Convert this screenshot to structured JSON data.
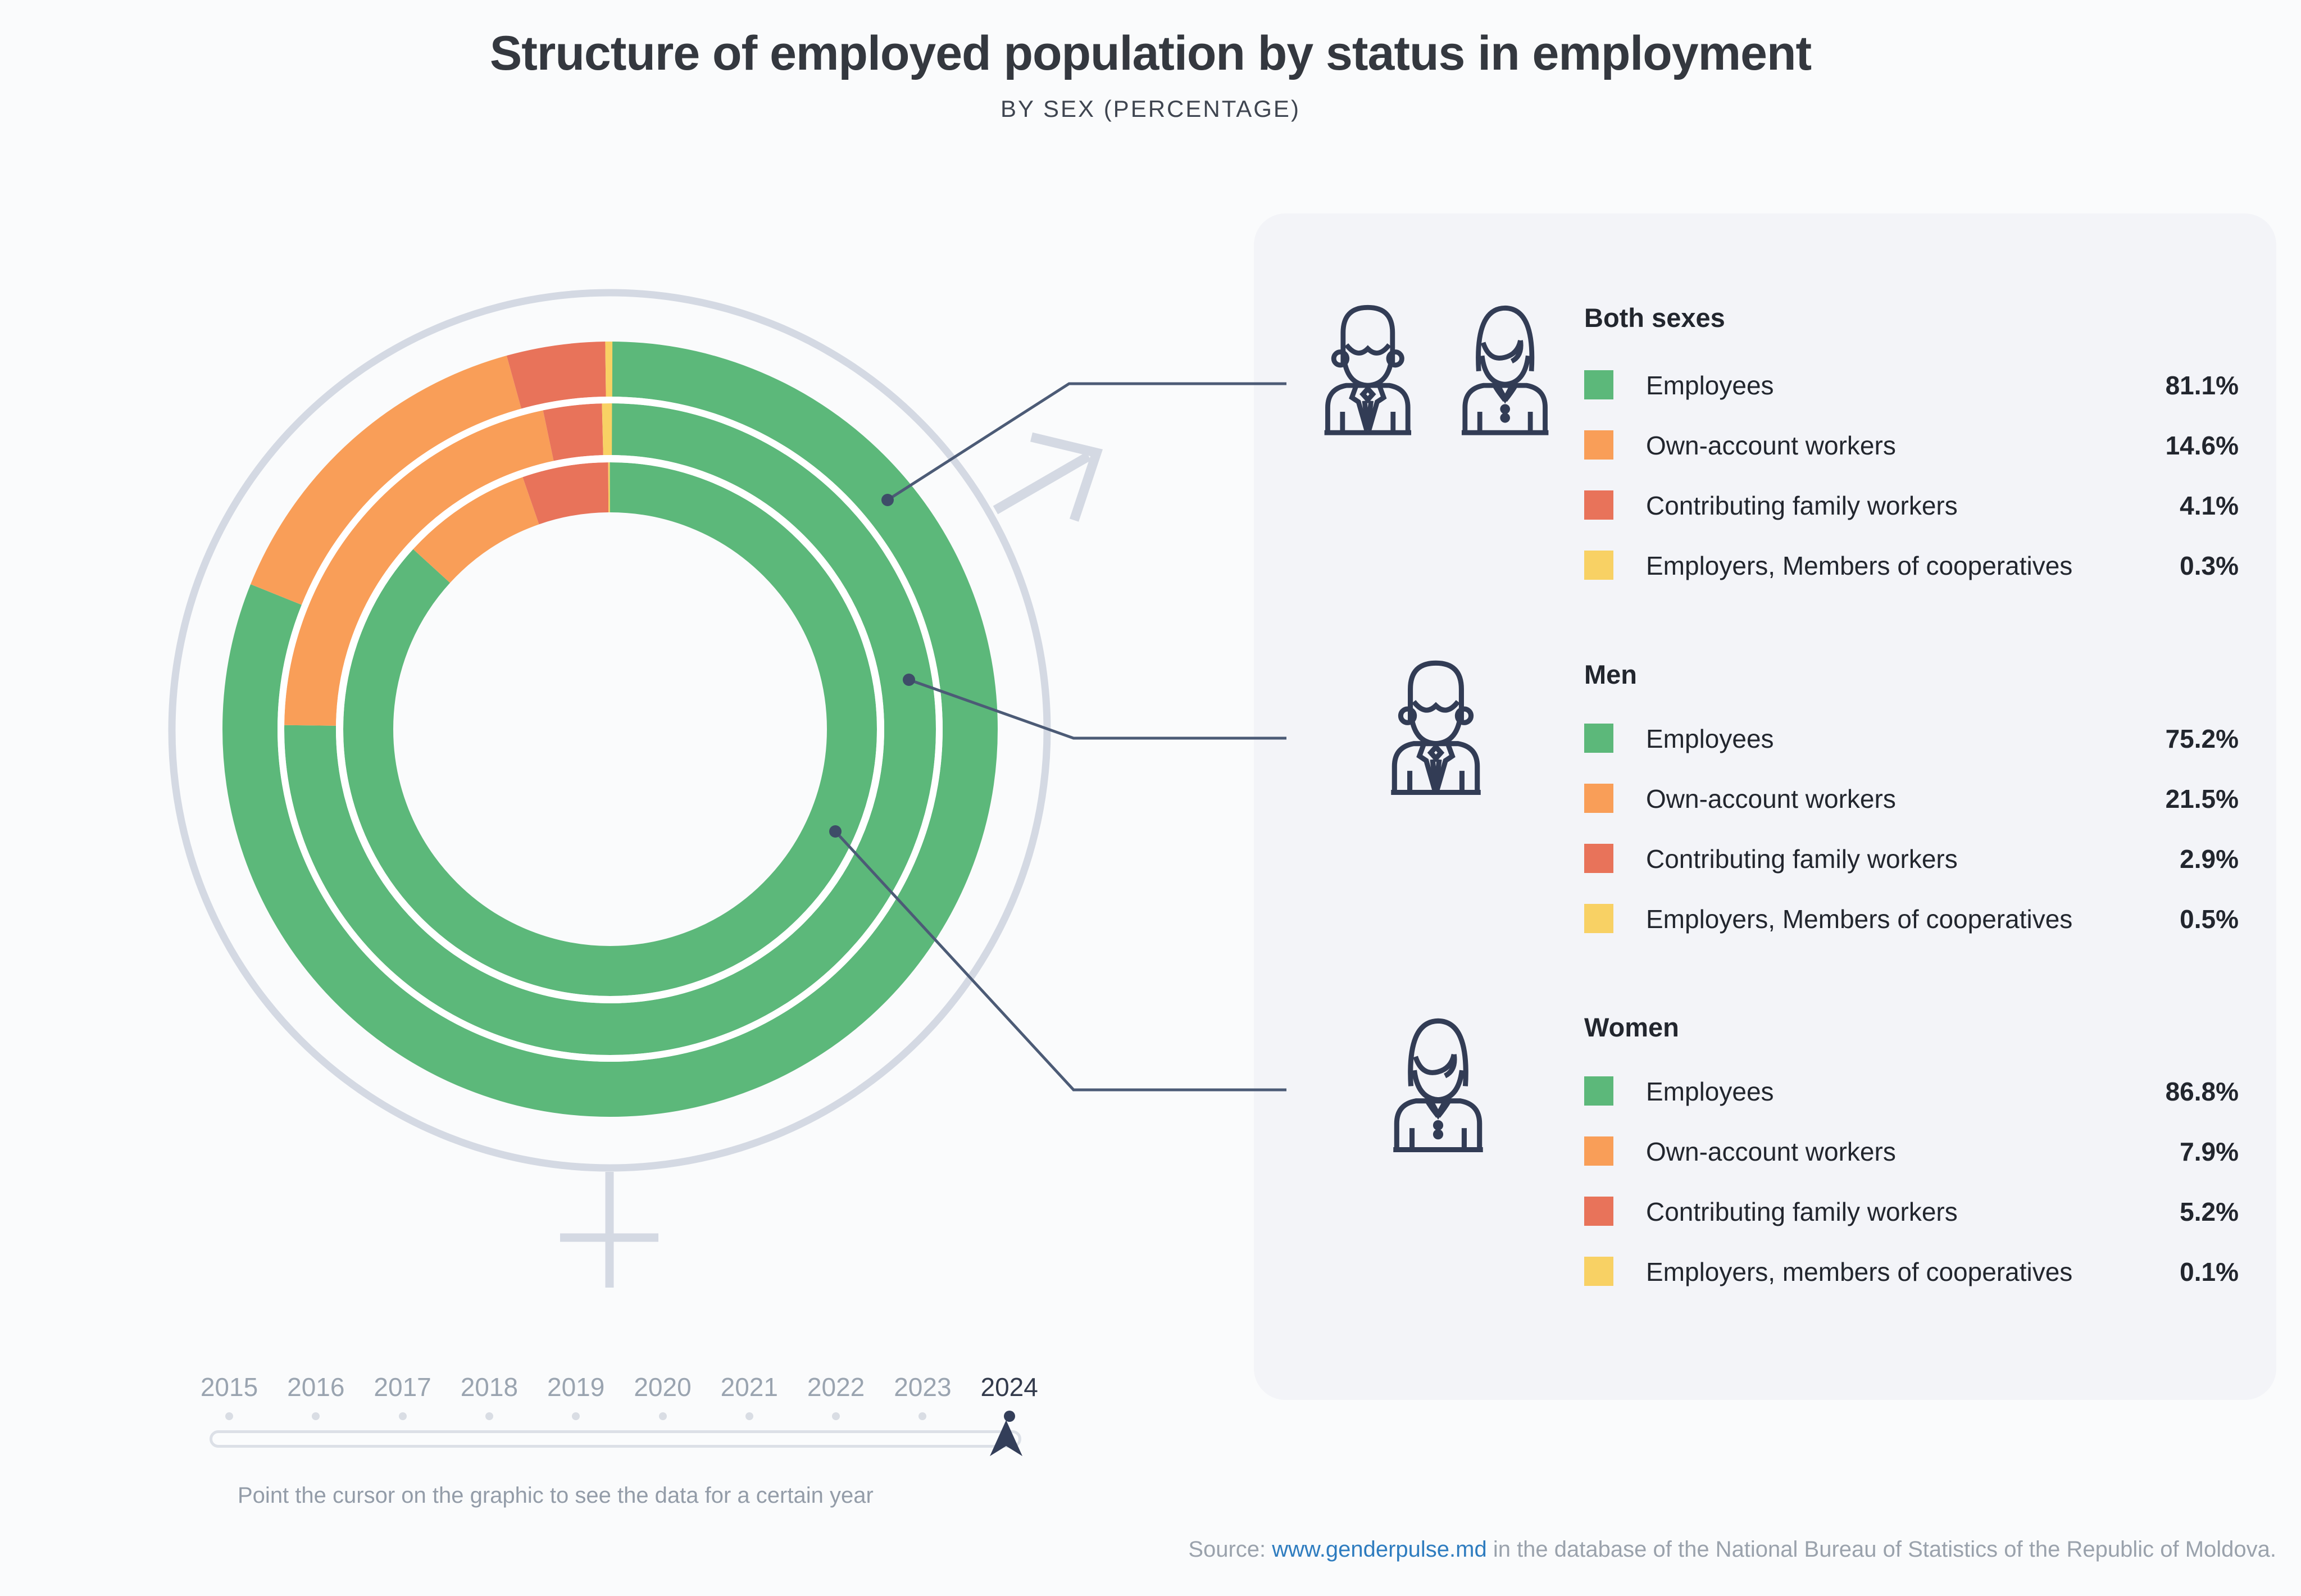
{
  "title": "Structure of employed population by status in employment",
  "subtitle": "BY SEX (PERCENTAGE)",
  "chart_data": {
    "type": "pie",
    "variant": "multi-ring-donut",
    "unit": "%",
    "start_angle_deg": 0,
    "direction": "clockwise",
    "rings_outer_to_inner": [
      "Both sexes",
      "Men",
      "Women"
    ],
    "categories": [
      "Employees",
      "Own-account workers",
      "Contributing family workers",
      "Employers, Members of cooperatives"
    ],
    "colors": [
      "#5cb87a",
      "#f99e58",
      "#e8735a",
      "#f8d164"
    ],
    "series": [
      {
        "name": "Both sexes",
        "values": [
          81.1,
          14.6,
          4.1,
          0.3
        ]
      },
      {
        "name": "Men",
        "values": [
          75.2,
          21.5,
          2.9,
          0.5
        ]
      },
      {
        "name": "Women",
        "values": [
          86.8,
          7.9,
          5.2,
          0.1
        ]
      }
    ]
  },
  "legend_panel": {
    "groups": [
      {
        "name": "Both sexes",
        "icon": "man-and-woman-icon",
        "items": [
          {
            "label": "Employees",
            "value": "81.1%",
            "color": "#5cb87a"
          },
          {
            "label": "Own-account workers",
            "value": "14.6%",
            "color": "#f99e58"
          },
          {
            "label": "Contributing family workers",
            "value": "4.1%",
            "color": "#e8735a"
          },
          {
            "label": "Employers, Members of cooperatives",
            "value": "0.3%",
            "color": "#f8d164"
          }
        ]
      },
      {
        "name": "Men",
        "icon": "man-icon",
        "items": [
          {
            "label": "Employees",
            "value": "75.2%",
            "color": "#5cb87a"
          },
          {
            "label": "Own-account workers",
            "value": "21.5%",
            "color": "#f99e58"
          },
          {
            "label": "Contributing family workers",
            "value": "2.9%",
            "color": "#e8735a"
          },
          {
            "label": "Employers, Members of cooperatives",
            "value": "0.5%",
            "color": "#f8d164"
          }
        ]
      },
      {
        "name": "Women",
        "icon": "woman-icon",
        "items": [
          {
            "label": "Employees",
            "value": "86.8%",
            "color": "#5cb87a"
          },
          {
            "label": "Own-account workers",
            "value": "7.9%",
            "color": "#f99e58"
          },
          {
            "label": "Contributing family workers",
            "value": "5.2%",
            "color": "#e8735a"
          },
          {
            "label": "Employers, members of cooperatives",
            "value": "0.1%",
            "color": "#f8d164"
          }
        ]
      }
    ]
  },
  "timeline": {
    "years": [
      "2015",
      "2016",
      "2017",
      "2018",
      "2019",
      "2020",
      "2021",
      "2022",
      "2023",
      "2024"
    ],
    "selected_year": "2024",
    "hint": "Point the cursor on the graphic to see the data for a certain year"
  },
  "source": {
    "prefix": "Source: ",
    "link": "www.genderpulse.md",
    "suffix": " in the database of the National Bureau of Statistics of the Republic of Moldova."
  }
}
